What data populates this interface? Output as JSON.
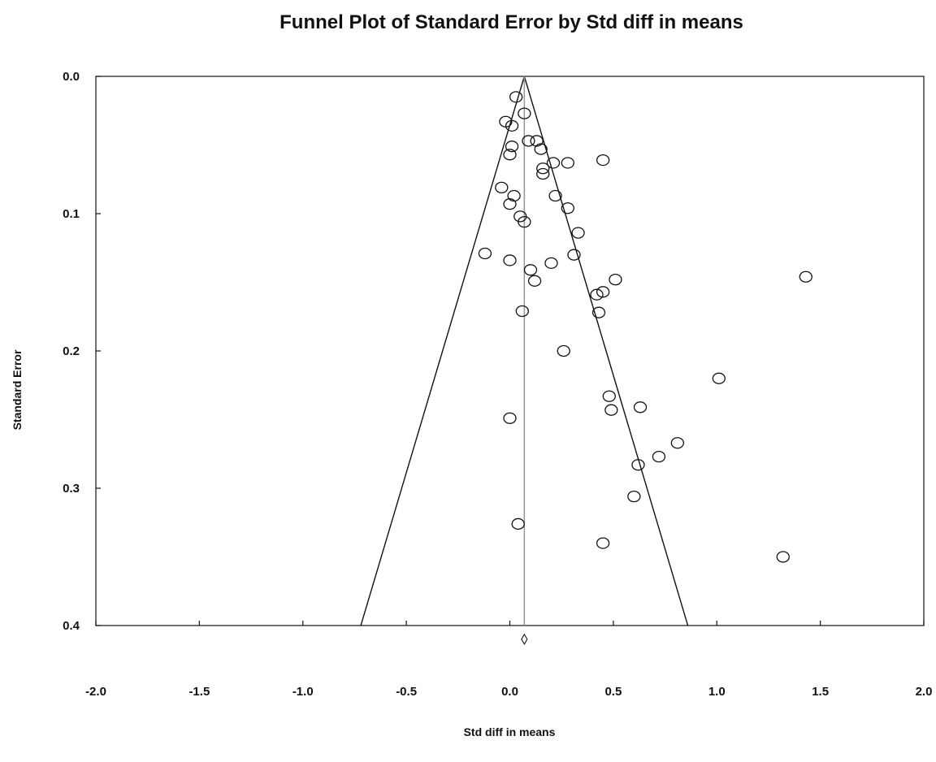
{
  "chart_data": {
    "type": "scatter",
    "title": "Funnel Plot of Standard Error by Std diff in means",
    "xlabel": "Std diff in means",
    "ylabel": "Standard Error",
    "xlim": [
      -2.0,
      2.0
    ],
    "ylim": [
      0.0,
      0.4
    ],
    "y_inverted": true,
    "x_ticks": [
      "-2.0",
      "-1.5",
      "-1.0",
      "-0.5",
      "0.0",
      "0.5",
      "1.0",
      "1.5",
      "2.0"
    ],
    "y_ticks": [
      "0.0",
      "0.1",
      "0.2",
      "0.3",
      "0.4"
    ],
    "grid": false,
    "pooled_effect": 0.07,
    "funnel": {
      "apex": [
        0.07,
        0.0
      ],
      "left_base": [
        -0.72,
        0.4
      ],
      "right_base": [
        0.86,
        0.4
      ]
    },
    "summary_diamond": {
      "x": 0.07,
      "y": 0.41
    },
    "series": [
      {
        "marker": "open-circle",
        "points": [
          [
            0.03,
            0.015
          ],
          [
            0.07,
            0.027
          ],
          [
            -0.02,
            0.033
          ],
          [
            0.01,
            0.036
          ],
          [
            0.09,
            0.047
          ],
          [
            0.13,
            0.047
          ],
          [
            0.15,
            0.053
          ],
          [
            0.01,
            0.051
          ],
          [
            0.0,
            0.057
          ],
          [
            0.21,
            0.063
          ],
          [
            0.28,
            0.063
          ],
          [
            0.45,
            0.061
          ],
          [
            0.16,
            0.067
          ],
          [
            0.16,
            0.071
          ],
          [
            -0.04,
            0.081
          ],
          [
            0.02,
            0.087
          ],
          [
            0.22,
            0.087
          ],
          [
            0.0,
            0.093
          ],
          [
            0.28,
            0.096
          ],
          [
            0.05,
            0.102
          ],
          [
            0.07,
            0.106
          ],
          [
            0.33,
            0.114
          ],
          [
            -0.12,
            0.129
          ],
          [
            0.31,
            0.13
          ],
          [
            0.0,
            0.134
          ],
          [
            0.2,
            0.136
          ],
          [
            0.1,
            0.141
          ],
          [
            0.12,
            0.149
          ],
          [
            0.51,
            0.148
          ],
          [
            0.45,
            0.157
          ],
          [
            0.42,
            0.159
          ],
          [
            1.43,
            0.146
          ],
          [
            0.06,
            0.171
          ],
          [
            0.43,
            0.172
          ],
          [
            0.26,
            0.2
          ],
          [
            1.01,
            0.22
          ],
          [
            0.48,
            0.233
          ],
          [
            0.49,
            0.243
          ],
          [
            0.63,
            0.241
          ],
          [
            0.0,
            0.249
          ],
          [
            0.81,
            0.267
          ],
          [
            0.72,
            0.277
          ],
          [
            0.62,
            0.283
          ],
          [
            0.6,
            0.306
          ],
          [
            0.04,
            0.326
          ],
          [
            0.45,
            0.34
          ],
          [
            1.32,
            0.35
          ]
        ]
      }
    ]
  }
}
